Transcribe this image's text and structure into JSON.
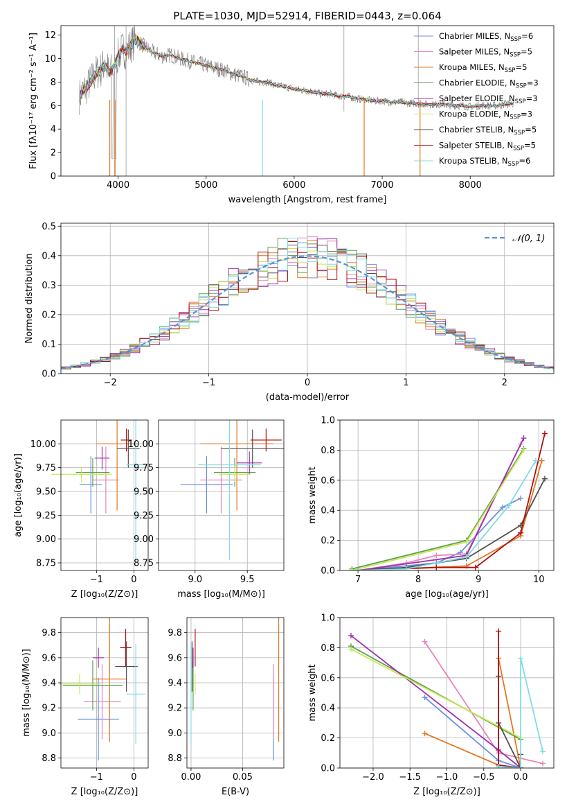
{
  "chart_data": [
    {
      "id": "spectrum",
      "type": "line",
      "title": "PLATE=1030, MJD=52914, FIBERID=0443, z=0.064",
      "xlabel": "wavelength [Angstrom, rest frame]",
      "ylabel": "Flux [fλ10⁻¹⁷ erg cm⁻² s⁻¹ A⁻¹]",
      "xlim": [
        3350,
        8950
      ],
      "ylim": [
        0,
        12.8
      ],
      "xticks": [
        4000,
        5000,
        6000,
        7000,
        8000
      ],
      "yticks": [
        0,
        2,
        4,
        6,
        8,
        10,
        12
      ],
      "legend_position": "top-right",
      "data_series": {
        "name": "",
        "x": [
          3560,
          3600,
          3650,
          3700,
          3750,
          3800,
          3850,
          3900,
          3950,
          4000,
          4050,
          4100,
          4150,
          4200,
          4300,
          4400,
          4500,
          4600,
          4700,
          4800,
          4900,
          5000,
          5100,
          5200,
          5300,
          5400,
          5500,
          5600,
          5700,
          5800,
          5900,
          6000,
          6100,
          6200,
          6300,
          6400,
          6500,
          6600,
          6700,
          6800,
          6900,
          7000,
          7100,
          7200,
          7300,
          7400,
          7500,
          7600,
          7700,
          7800,
          7900,
          8000,
          8100,
          8200,
          8300,
          8400,
          8500
        ],
        "y": [
          6.8,
          7.2,
          7.6,
          8.2,
          8.8,
          9.0,
          9.6,
          8.8,
          9.2,
          10.2,
          10.8,
          10.6,
          11.2,
          11.6,
          11.0,
          10.5,
          10.2,
          10.3,
          10.0,
          9.8,
          9.6,
          9.4,
          9.2,
          9.0,
          8.7,
          8.5,
          8.2,
          8.0,
          8.0,
          7.7,
          7.6,
          7.4,
          7.3,
          7.2,
          7.0,
          7.0,
          6.8,
          6.8,
          6.6,
          6.5,
          6.4,
          6.4,
          6.3,
          6.3,
          6.2,
          6.2,
          6.1,
          6.1,
          6.1,
          6.0,
          6.0,
          5.9,
          6.0,
          6.0,
          6.0,
          6.1,
          6.2
        ]
      },
      "series": [
        {
          "name": "Chabrier MILES, N_SSP=6",
          "color": "#6a8fe0",
          "sub": "SSP",
          "count": "6",
          "prefix": "Chabrier MILES, N"
        },
        {
          "name": "Salpeter MILES, N_SSP=5",
          "color": "#e884b8",
          "sub": "SSP",
          "count": "5",
          "prefix": "Salpeter MILES, N"
        },
        {
          "name": "Kroupa MILES, N_SSP=5",
          "color": "#e07820",
          "sub": "SSP",
          "count": "5",
          "prefix": "Kroupa MILES, N"
        },
        {
          "name": "Chabrier ELODIE, N_SSP=3",
          "color": "#5aa050",
          "sub": "SSP",
          "count": "3",
          "prefix": "Chabrier ELODIE, N"
        },
        {
          "name": "Salpeter ELODIE, N_SSP=3",
          "color": "#a030b0",
          "sub": "SSP",
          "count": "3",
          "prefix": "Salpeter ELODIE, N"
        },
        {
          "name": "Kroupa ELODIE, N_SSP=3",
          "color": "#c8e850",
          "sub": "SSP",
          "count": "3",
          "prefix": "Kroupa ELODIE, N"
        },
        {
          "name": "Chabrier STELIB, N_SSP=5",
          "color": "#505050",
          "sub": "SSP",
          "count": "5",
          "prefix": "Chabrier STELIB, N"
        },
        {
          "name": "Salpeter STELIB, N_SSP=5",
          "color": "#b01010",
          "sub": "SSP",
          "count": "5",
          "prefix": "Salpeter STELIB, N"
        },
        {
          "name": "Kroupa STELIB, N_SSP=6",
          "color": "#80dce0",
          "sub": "SSP",
          "count": "6",
          "prefix": "Kroupa STELIB, N"
        }
      ]
    },
    {
      "id": "residuals",
      "type": "step",
      "xlabel": "(data-model)/error",
      "ylabel": "Normed distribution",
      "xlim": [
        -2.5,
        2.5
      ],
      "ylim": [
        0,
        0.51
      ],
      "xticks": [
        -2,
        -1,
        0,
        1,
        2
      ],
      "yticks": [
        0.0,
        0.1,
        0.2,
        0.3,
        0.4,
        0.5
      ],
      "grid": true,
      "legend": "𝒩(0, 1)",
      "legend_position": "top-right",
      "reference_curve": "normal(0,1)",
      "bin_width": 0.1
    },
    {
      "id": "age-Z",
      "type": "errorbar",
      "xlabel": "Z [log₁₀(Z/Z⊙)]",
      "ylabel": "age  [log₁₀(age/yr)]",
      "xlim": [
        -1.95,
        0.38
      ],
      "ylim": [
        8.67,
        10.25
      ],
      "xticks": [
        -1,
        0
      ],
      "yticks": [
        8.75,
        9.0,
        9.25,
        9.5,
        9.75,
        10.0
      ],
      "points": [
        {
          "x": -1.15,
          "xerr": 0.3,
          "y": 9.57,
          "yerr": 0.3
        },
        {
          "x": -0.75,
          "xerr": 0.35,
          "y": 9.62,
          "yerr": 0.35
        },
        {
          "x": -0.45,
          "xerr": 0.55,
          "y": 10.0,
          "yerr": 0.7
        },
        {
          "x": -1.1,
          "xerr": 0.45,
          "y": 9.7,
          "yerr": 0.15
        },
        {
          "x": -0.85,
          "xerr": 0.2,
          "y": 9.85,
          "yerr": 0.12
        },
        {
          "x": -1.4,
          "xerr": 0.8,
          "y": 9.68,
          "yerr": 0.08
        },
        {
          "x": -0.15,
          "xerr": 0.3,
          "y": 9.95,
          "yerr": 0.2
        },
        {
          "x": -0.2,
          "xerr": 0.15,
          "y": 10.04,
          "yerr": 0.12
        },
        {
          "x": 0.05,
          "xerr": 0.25,
          "y": 9.78,
          "yerr": 1.0
        }
      ]
    },
    {
      "id": "age-mass",
      "type": "errorbar",
      "xlabel": "mass [log₁₀(M/M⊙)]",
      "ylabel": "",
      "xlim": [
        8.65,
        9.85
      ],
      "ylim": [
        8.67,
        10.25
      ],
      "xticks": [
        9.0,
        9.5
      ],
      "yticks": [
        8.75,
        9.0,
        9.25,
        9.5,
        9.75,
        10.0
      ],
      "points": [
        {
          "x": 9.11,
          "xerr": 0.25,
          "y": 9.57,
          "yerr": 0.3
        },
        {
          "x": 9.25,
          "xerr": 0.2,
          "y": 9.62,
          "yerr": 0.35
        },
        {
          "x": 9.4,
          "xerr": 0.35,
          "y": 10.0,
          "yerr": 0.7
        },
        {
          "x": 9.38,
          "xerr": 0.2,
          "y": 9.7,
          "yerr": 0.15
        },
        {
          "x": 9.52,
          "xerr": 0.12,
          "y": 9.8,
          "yerr": 0.12
        },
        {
          "x": 9.38,
          "xerr": 0.15,
          "y": 9.68,
          "yerr": 0.08
        },
        {
          "x": 9.55,
          "xerr": 0.3,
          "y": 9.95,
          "yerr": 0.2
        },
        {
          "x": 9.68,
          "xerr": 0.15,
          "y": 10.04,
          "yerr": 0.12
        },
        {
          "x": 9.33,
          "xerr": 0.3,
          "y": 9.78,
          "yerr": 1.0
        }
      ]
    },
    {
      "id": "weight-age",
      "type": "line",
      "xlabel": "age  [log₁₀(age/yr)]",
      "ylabel": "mass weight",
      "xlim": [
        6.7,
        10.25
      ],
      "ylim": [
        0,
        1.0
      ],
      "xticks": [
        7,
        8,
        9,
        10
      ],
      "yticks": [
        0.0,
        0.2,
        0.4,
        0.6,
        0.8,
        1.0
      ],
      "grid": true,
      "series": [
        {
          "x": [
            7.0,
            8.3,
            8.7,
            9.4,
            9.7
          ],
          "y": [
            0.0,
            0.05,
            0.12,
            0.42,
            0.48
          ]
        },
        {
          "x": [
            7.0,
            7.8,
            8.3,
            8.8,
            9.7
          ],
          "y": [
            0.0,
            0.05,
            0.1,
            0.11,
            0.84
          ]
        },
        {
          "x": [
            7.0,
            8.8,
            9.7,
            10.05
          ],
          "y": [
            0.0,
            0.03,
            0.23,
            0.73
          ]
        },
        {
          "x": [
            6.9,
            8.8,
            9.75
          ],
          "y": [
            0.01,
            0.2,
            0.81
          ]
        },
        {
          "x": [
            7.0,
            8.8,
            9.75
          ],
          "y": [
            0.0,
            0.1,
            0.88
          ]
        },
        {
          "x": [
            6.9,
            8.8,
            9.75
          ],
          "y": [
            0.0,
            0.19,
            0.8
          ]
        },
        {
          "x": [
            7.0,
            7.8,
            8.8,
            9.7,
            10.1
          ],
          "y": [
            0.0,
            0.02,
            0.08,
            0.3,
            0.61
          ]
        },
        {
          "x": [
            7.0,
            8.3,
            8.95,
            9.7,
            10.1
          ],
          "y": [
            0.0,
            0.02,
            0.02,
            0.25,
            0.91
          ]
        },
        {
          "x": [
            7.0,
            7.8,
            8.8,
            9.5,
            9.95
          ],
          "y": [
            0.0,
            0.01,
            0.09,
            0.43,
            0.73
          ]
        }
      ]
    },
    {
      "id": "mass-Z",
      "type": "errorbar",
      "xlabel": "Z [log₁₀(Z/Z⊙)]",
      "ylabel": "mass [log₁₀(M/M⊙)]",
      "xlim": [
        -1.95,
        0.38
      ],
      "ylim": [
        8.72,
        9.92
      ],
      "xticks": [
        -1,
        0
      ],
      "yticks": [
        8.8,
        9.0,
        9.2,
        9.4,
        9.6,
        9.8
      ],
      "points": [
        {
          "x": -0.95,
          "xerr": 0.55,
          "y": 9.11,
          "yerr": 0.33
        },
        {
          "x": -0.85,
          "xerr": 0.5,
          "y": 9.25,
          "yerr": 0.3
        },
        {
          "x": -0.65,
          "xerr": 0.45,
          "y": 9.43,
          "yerr": 0.5
        },
        {
          "x": -1.1,
          "xerr": 0.8,
          "y": 9.38,
          "yerr": 0.2
        },
        {
          "x": -0.95,
          "xerr": 0.15,
          "y": 9.6,
          "yerr": 0.08
        },
        {
          "x": -1.45,
          "xerr": 0.55,
          "y": 9.39,
          "yerr": 0.08
        },
        {
          "x": -0.2,
          "xerr": 0.3,
          "y": 9.53,
          "yerr": 0.2
        },
        {
          "x": -0.22,
          "xerr": 0.15,
          "y": 9.68,
          "yerr": 0.15
        },
        {
          "x": 0.05,
          "xerr": 0.25,
          "y": 9.31,
          "yerr": 0.4
        }
      ]
    },
    {
      "id": "mass-EBV",
      "type": "errorbar",
      "xlabel": "E(B-V)",
      "ylabel": "",
      "xlim": [
        -0.004,
        0.09
      ],
      "ylim": [
        8.72,
        9.92
      ],
      "xticks": [
        0.0,
        0.05
      ],
      "yticks": [
        8.8,
        9.0,
        9.2,
        9.4,
        9.6,
        9.8
      ],
      "points": [
        {
          "x": 0.08,
          "y": 9.11,
          "yerr": 0.33
        },
        {
          "x": 0.08,
          "y": 9.25,
          "yerr": 0.3
        },
        {
          "x": 0.085,
          "y": 9.43,
          "yerr": 0.5
        },
        {
          "x": 0.002,
          "y": 9.38,
          "yerr": 0.2
        },
        {
          "x": 0.002,
          "y": 9.6,
          "yerr": 0.08
        },
        {
          "x": 0.004,
          "y": 9.39,
          "yerr": 0.08
        },
        {
          "x": 0.001,
          "y": 9.53,
          "yerr": 0.2
        },
        {
          "x": 0.004,
          "y": 9.68,
          "yerr": 0.15
        },
        {
          "x": 0.0,
          "y": 9.31,
          "yerr": 0.4
        }
      ]
    },
    {
      "id": "weight-Z",
      "type": "line",
      "xlabel": "Z [log₁₀(Z/Z⊙)]",
      "ylabel": "mass weight",
      "xlim": [
        -2.45,
        0.45
      ],
      "ylim": [
        0,
        1.0
      ],
      "xticks": [
        -2.0,
        -1.5,
        -1.0,
        -0.5,
        0.0
      ],
      "yticks": [
        0.0,
        0.2,
        0.4,
        0.6,
        0.8,
        1.0
      ],
      "grid": true,
      "series": [
        {
          "x": [
            -1.3,
            -0.3,
            0.0
          ],
          "y": [
            0.47,
            0.05,
            0.0
          ]
        },
        {
          "x": [
            -1.3,
            -0.3,
            0.3
          ],
          "y": [
            0.84,
            0.1,
            0.03
          ]
        },
        {
          "x": [
            -1.3,
            -0.3,
            -0.3,
            0.0
          ],
          "y": [
            0.23,
            0.02,
            0.73,
            0.0
          ]
        },
        {
          "x": [
            -2.3,
            0.0
          ],
          "y": [
            0.81,
            0.19
          ]
        },
        {
          "x": [
            -2.3,
            -0.3,
            0.0
          ],
          "y": [
            0.88,
            0.12,
            0.0
          ]
        },
        {
          "x": [
            -2.3,
            0.0
          ],
          "y": [
            0.79,
            0.2
          ]
        },
        {
          "x": [
            -0.3,
            -0.3,
            0.0,
            0.0
          ],
          "y": [
            0.61,
            0.3,
            0.0,
            0.09
          ]
        },
        {
          "x": [
            -0.3,
            -0.3,
            0.0
          ],
          "y": [
            0.91,
            0.02,
            0.0
          ]
        },
        {
          "x": [
            -0.3,
            0.0,
            0.0,
            0.3
          ],
          "y": [
            0.01,
            0.0,
            0.73,
            0.11
          ]
        }
      ]
    }
  ]
}
